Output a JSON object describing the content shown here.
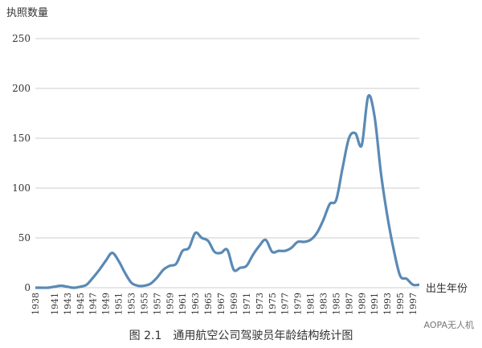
{
  "chart_data": {
    "type": "line",
    "y_label": "执照数量",
    "x_label": "出生年份",
    "caption": "图 2.1　通用航空公司驾驶员年龄结构统计图",
    "watermark": "AOPA无人机",
    "x": [
      1938,
      1939,
      1940,
      1941,
      1942,
      1943,
      1944,
      1945,
      1946,
      1947,
      1948,
      1949,
      1950,
      1951,
      1952,
      1953,
      1954,
      1955,
      1956,
      1957,
      1958,
      1959,
      1960,
      1961,
      1962,
      1963,
      1964,
      1965,
      1966,
      1967,
      1968,
      1969,
      1970,
      1971,
      1972,
      1973,
      1974,
      1975,
      1976,
      1977,
      1978,
      1979,
      1980,
      1981,
      1982,
      1983,
      1984,
      1985,
      1986,
      1987,
      1988,
      1989,
      1990,
      1991,
      1992,
      1993,
      1994,
      1995,
      1996,
      1997,
      1998
    ],
    "series": [
      {
        "color": "#5a8ab5",
        "values": [
          0,
          0,
          0,
          1,
          2,
          1,
          0,
          1,
          3,
          10,
          18,
          27,
          35,
          27,
          15,
          5,
          2,
          2,
          4,
          10,
          18,
          22,
          24,
          37,
          40,
          55,
          50,
          47,
          36,
          35,
          38,
          18,
          20,
          22,
          33,
          42,
          48,
          36,
          37,
          37,
          40,
          46,
          46,
          48,
          55,
          68,
          84,
          88,
          120,
          150,
          155,
          143,
          192,
          172,
          115,
          72,
          38,
          12,
          9,
          3,
          3
        ]
      }
    ],
    "xlim": [
      1938,
      1998
    ],
    "xticks": [
      1938,
      1941,
      1943,
      1945,
      1947,
      1949,
      1951,
      1953,
      1955,
      1957,
      1959,
      1961,
      1963,
      1965,
      1967,
      1969,
      1971,
      1973,
      1975,
      1977,
      1979,
      1981,
      1983,
      1985,
      1987,
      1989,
      1991,
      1993,
      1995,
      1997
    ],
    "ylim": [
      0,
      250
    ],
    "yticks": [
      0,
      50,
      100,
      150,
      200,
      250
    ],
    "grid": true
  }
}
